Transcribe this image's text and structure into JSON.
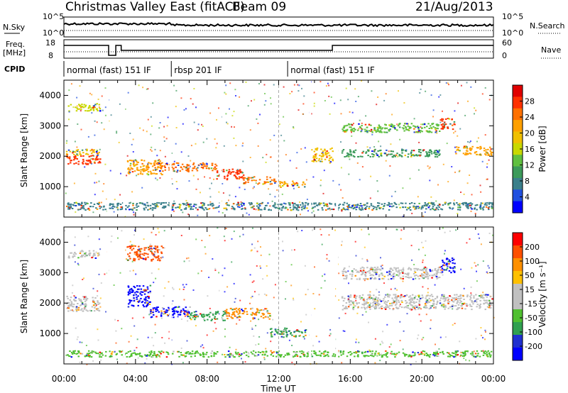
{
  "header": {
    "title": "Christmas Valley East (fitACF)",
    "beam": "Beam 09",
    "date": "21/Aug/2013"
  },
  "top_panels": {
    "nsky_label": "N.Sky",
    "nsearch_label": "N.Search",
    "freq_label_1": "Freq.",
    "freq_label_2": "[MHz]",
    "nave_label": "Nave",
    "cpid_label": "CPID",
    "nsky_ticks": [
      "10^5",
      "10^0"
    ],
    "nsearch_ticks": [
      "10^5",
      "10^0"
    ],
    "freq_ticks": [
      "18",
      "8"
    ],
    "nave_ticks": [
      "60",
      "0"
    ]
  },
  "cpid_segments": [
    {
      "label": "normal (fast) 151 IF",
      "start": 0,
      "end": 6.0
    },
    {
      "label": "rbsp 201 IF",
      "start": 6.0,
      "end": 12.5
    },
    {
      "label": "normal (fast) 151 IF",
      "start": 12.5,
      "end": 24.0
    }
  ],
  "colors": {
    "power": [
      "#0000ff",
      "#2050e0",
      "#3a7f8a",
      "#3c9a5a",
      "#60c040",
      "#c8d800",
      "#f0c000",
      "#ffa000",
      "#ff7000",
      "#ff3000",
      "#e00000"
    ],
    "velocity": [
      "#ff0000",
      "#ff5000",
      "#ff9000",
      "#ffc000",
      "#c0c0c0",
      "#c0c0c0",
      "#50c030",
      "#30a050",
      "#2030d0",
      "#0000ff"
    ]
  },
  "chart_data": [
    {
      "type": "heatmap",
      "name": "power",
      "ylabel": "Slant Range [km]",
      "yticks": [
        "1000",
        "2000",
        "3000",
        "4000"
      ],
      "ylim": [
        0,
        4500
      ],
      "xlim": [
        0,
        24
      ],
      "colorbar_label": "Power [dB]",
      "colorbar_ticks": [
        "4",
        "8",
        "12",
        "16",
        "20",
        "24",
        "28"
      ],
      "bands": [
        {
          "t0": 0.1,
          "t1": 2.0,
          "r0": 1750,
          "r1": 2050,
          "level": 9
        },
        {
          "t0": 0.1,
          "t1": 2.0,
          "r0": 2050,
          "r1": 2250,
          "level": 6
        },
        {
          "t0": 0.2,
          "t1": 2.0,
          "r0": 3500,
          "r1": 3750,
          "level": 5
        },
        {
          "t0": 3.5,
          "t1": 5.5,
          "r0": 1400,
          "r1": 1900,
          "level": 7
        },
        {
          "t0": 5.0,
          "t1": 7.0,
          "r0": 1500,
          "r1": 1800,
          "level": 8
        },
        {
          "t0": 7.0,
          "t1": 8.5,
          "r0": 1550,
          "r1": 1800,
          "level": 8
        },
        {
          "t0": 8.5,
          "t1": 10.0,
          "r0": 1250,
          "r1": 1600,
          "level": 9
        },
        {
          "t0": 10.0,
          "t1": 11.8,
          "r0": 1100,
          "r1": 1350,
          "level": 8
        },
        {
          "t0": 12.0,
          "t1": 13.5,
          "r0": 1000,
          "r1": 1200,
          "level": 7
        },
        {
          "t0": 13.8,
          "t1": 15.0,
          "r0": 1800,
          "r1": 2300,
          "level": 6
        },
        {
          "t0": 15.5,
          "t1": 21.0,
          "r0": 2000,
          "r1": 2250,
          "level": 3
        },
        {
          "t0": 15.5,
          "t1": 21.0,
          "r0": 2800,
          "r1": 3100,
          "level": 4
        },
        {
          "t0": 21.0,
          "t1": 21.8,
          "r0": 2900,
          "r1": 3300,
          "level": 9
        },
        {
          "t0": 21.8,
          "t1": 23.9,
          "r0": 2050,
          "r1": 2350,
          "level": 7
        },
        {
          "t0": 0.1,
          "t1": 23.9,
          "r0": 250,
          "r1": 500,
          "level": 2
        }
      ]
    },
    {
      "type": "heatmap",
      "name": "velocity",
      "xlabel": "Time UT",
      "ylabel": "Slant Range [km]",
      "xticks": [
        "00:00",
        "04:00",
        "08:00",
        "12:00",
        "16:00",
        "20:00",
        "00:00"
      ],
      "yticks": [
        "1000",
        "2000",
        "3000",
        "4000"
      ],
      "ylim": [
        0,
        4500
      ],
      "xlim": [
        0,
        24
      ],
      "colorbar_label": "Velocity [m s⁻¹]",
      "colorbar_ticks": [
        "200",
        "100",
        "50",
        "15",
        "-15",
        "-50",
        "-100",
        "-200"
      ],
      "bands": [
        {
          "t0": 0.1,
          "t1": 2.0,
          "r0": 1750,
          "r1": 2250,
          "level": 4
        },
        {
          "t0": 0.2,
          "t1": 2.0,
          "r0": 3500,
          "r1": 3750,
          "level": 4
        },
        {
          "t0": 3.5,
          "t1": 4.8,
          "r0": 1900,
          "r1": 2600,
          "level": 9
        },
        {
          "t0": 4.8,
          "t1": 7.0,
          "r0": 1550,
          "r1": 1900,
          "level": 9
        },
        {
          "t0": 7.0,
          "t1": 9.0,
          "r0": 1450,
          "r1": 1750,
          "level": 7
        },
        {
          "t0": 9.0,
          "t1": 11.5,
          "r0": 1500,
          "r1": 1850,
          "level": 2
        },
        {
          "t0": 11.5,
          "t1": 13.5,
          "r0": 900,
          "r1": 1200,
          "level": 7
        },
        {
          "t0": 15.5,
          "t1": 23.9,
          "r0": 1800,
          "r1": 2300,
          "level": 4
        },
        {
          "t0": 15.5,
          "t1": 21.0,
          "r0": 2800,
          "r1": 3200,
          "level": 4
        },
        {
          "t0": 21.0,
          "t1": 21.8,
          "r0": 3000,
          "r1": 3500,
          "level": 9
        },
        {
          "t0": 3.5,
          "t1": 5.5,
          "r0": 3400,
          "r1": 3900,
          "level": 1
        },
        {
          "t0": 0.1,
          "t1": 23.9,
          "r0": 250,
          "r1": 450,
          "level": 6
        }
      ]
    }
  ]
}
